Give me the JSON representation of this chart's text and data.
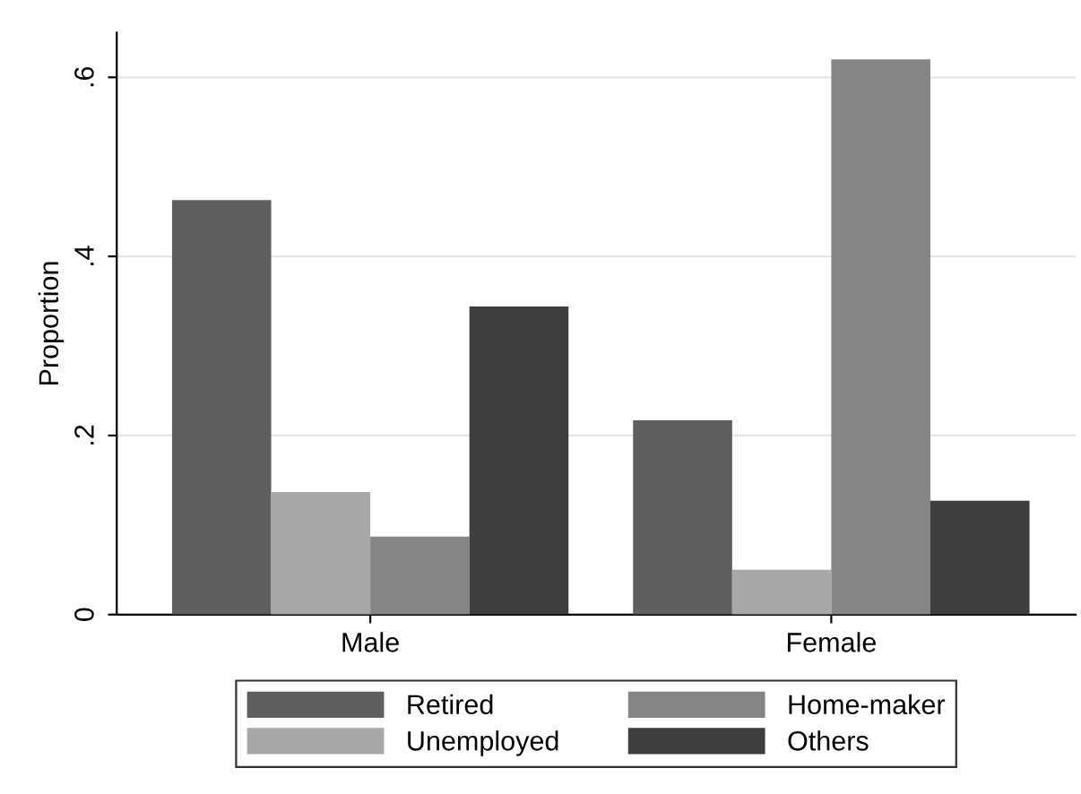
{
  "chart_data": {
    "type": "bar",
    "ylabel": "Proportion",
    "categories": [
      "Male",
      "Female"
    ],
    "series": [
      {
        "name": "Retired",
        "color": "#5f5f5f",
        "values": [
          0.463,
          0.217
        ]
      },
      {
        "name": "Unemployed",
        "color": "#a8a8a8",
        "values": [
          0.137,
          0.05
        ]
      },
      {
        "name": "Home-maker",
        "color": "#858585",
        "values": [
          0.087,
          0.62
        ]
      },
      {
        "name": "Others",
        "color": "#3e3e3e",
        "values": [
          0.344,
          0.127
        ]
      }
    ],
    "ylim": [
      0,
      0.65
    ],
    "yticks": [
      0,
      {
        "value": 0.2,
        "label": ".2"
      },
      {
        "value": 0.4,
        "label": ".4"
      },
      {
        "value": 0.6,
        "label": ".6"
      }
    ],
    "grid": "y",
    "legend": "bottom"
  }
}
